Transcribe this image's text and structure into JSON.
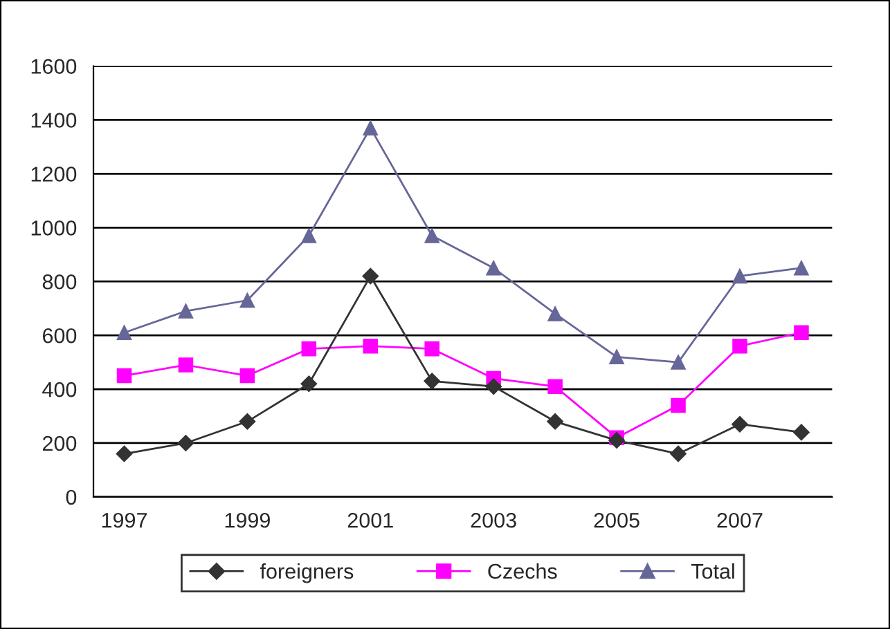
{
  "chart_data": {
    "type": "line",
    "categories": [
      "1997",
      null,
      "1999",
      null,
      "2001",
      null,
      "2003",
      null,
      "2005",
      null,
      "2007",
      null
    ],
    "series": [
      {
        "name": "foreigners",
        "color": "#333333",
        "marker": "diamond",
        "values": [
          160,
          200,
          280,
          420,
          820,
          430,
          410,
          280,
          210,
          160,
          270,
          240
        ]
      },
      {
        "name": "Czechs",
        "color": "#ff00ff",
        "marker": "square",
        "values": [
          450,
          490,
          450,
          550,
          560,
          550,
          440,
          410,
          220,
          340,
          560,
          610
        ]
      },
      {
        "name": "Total",
        "color": "#666699",
        "marker": "triangle",
        "values": [
          610,
          690,
          730,
          970,
          1370,
          970,
          850,
          680,
          520,
          500,
          820,
          850
        ]
      }
    ],
    "ylim": [
      0,
      1600
    ],
    "yticks": [
      0,
      200,
      400,
      600,
      800,
      1000,
      1200,
      1400,
      1600
    ],
    "grid": "y",
    "legend": "bottom",
    "line_style": "solid"
  }
}
